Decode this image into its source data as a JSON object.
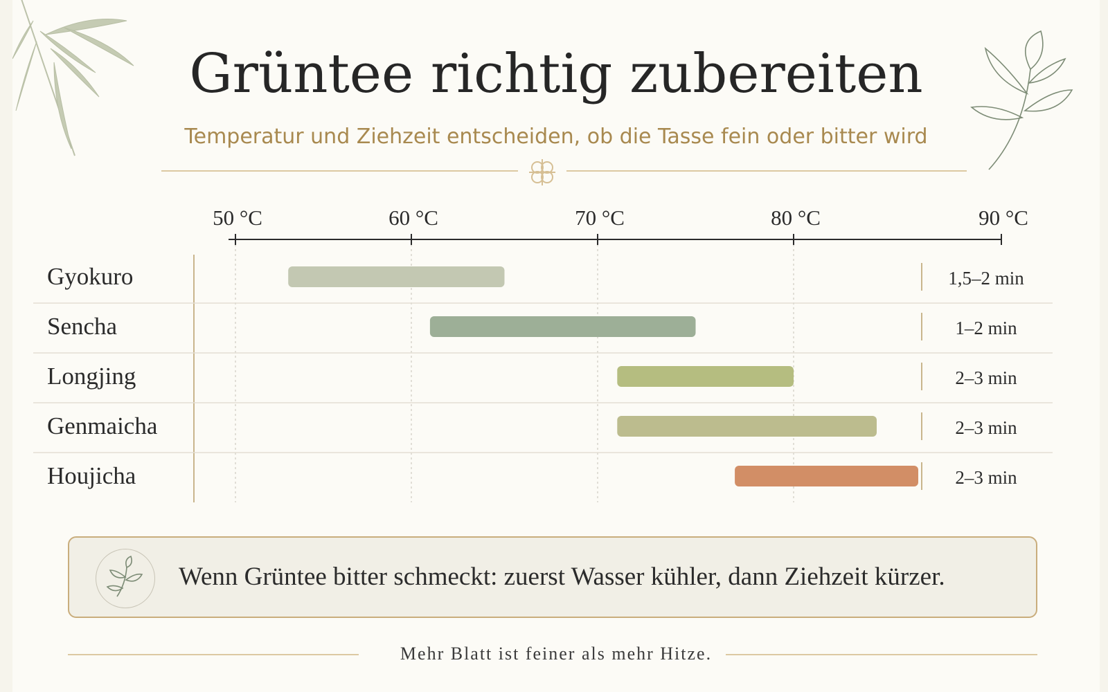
{
  "header": {
    "title": "Grüntee richtig zubereiten",
    "subtitle": "Temperatur und Ziehzeit entscheiden, ob die Tasse fein oder bitter wird"
  },
  "chart_data": {
    "type": "bar",
    "orientation": "horizontal-range",
    "xlim": [
      48,
      91
    ],
    "x_ticks": [
      50,
      60,
      70,
      80,
      90
    ],
    "x_tick_labels": [
      "50 °C",
      "60 °C",
      "70 °C",
      "80 °C",
      "90 °C"
    ],
    "grid": true,
    "categories": [
      "Gyokuro",
      "Sencha",
      "Longjing",
      "Genmaicha",
      "Houjicha"
    ],
    "ranges": [
      {
        "name": "Gyokuro",
        "start": 53,
        "end": 65,
        "time": "1,5–2 min",
        "color": "#c3c8b2"
      },
      {
        "name": "Sencha",
        "start": 61,
        "end": 75,
        "time": "1–2 min",
        "color": "#9daf97"
      },
      {
        "name": "Longjing",
        "start": 71,
        "end": 80,
        "time": "2–3 min",
        "color": "#b5bd80"
      },
      {
        "name": "Genmaicha",
        "start": 71,
        "end": 84,
        "time": "2–3 min",
        "color": "#bcbc8e"
      },
      {
        "name": "Houjicha",
        "start": 77,
        "end": 86,
        "time": "2–3 min",
        "color": "#d28e66"
      }
    ]
  },
  "tip": {
    "text": "Wenn Grüntee bitter schmeckt: zuerst Wasser kühler, dann Ziehzeit kürzer.",
    "icon": "tea-leaf-icon"
  },
  "footer": {
    "text": "Mehr Blatt ist feiner als mehr Hitze."
  },
  "colors": {
    "accent": "#a8894f",
    "line": "#dcc9a2",
    "axis": "#2b2b2b"
  }
}
